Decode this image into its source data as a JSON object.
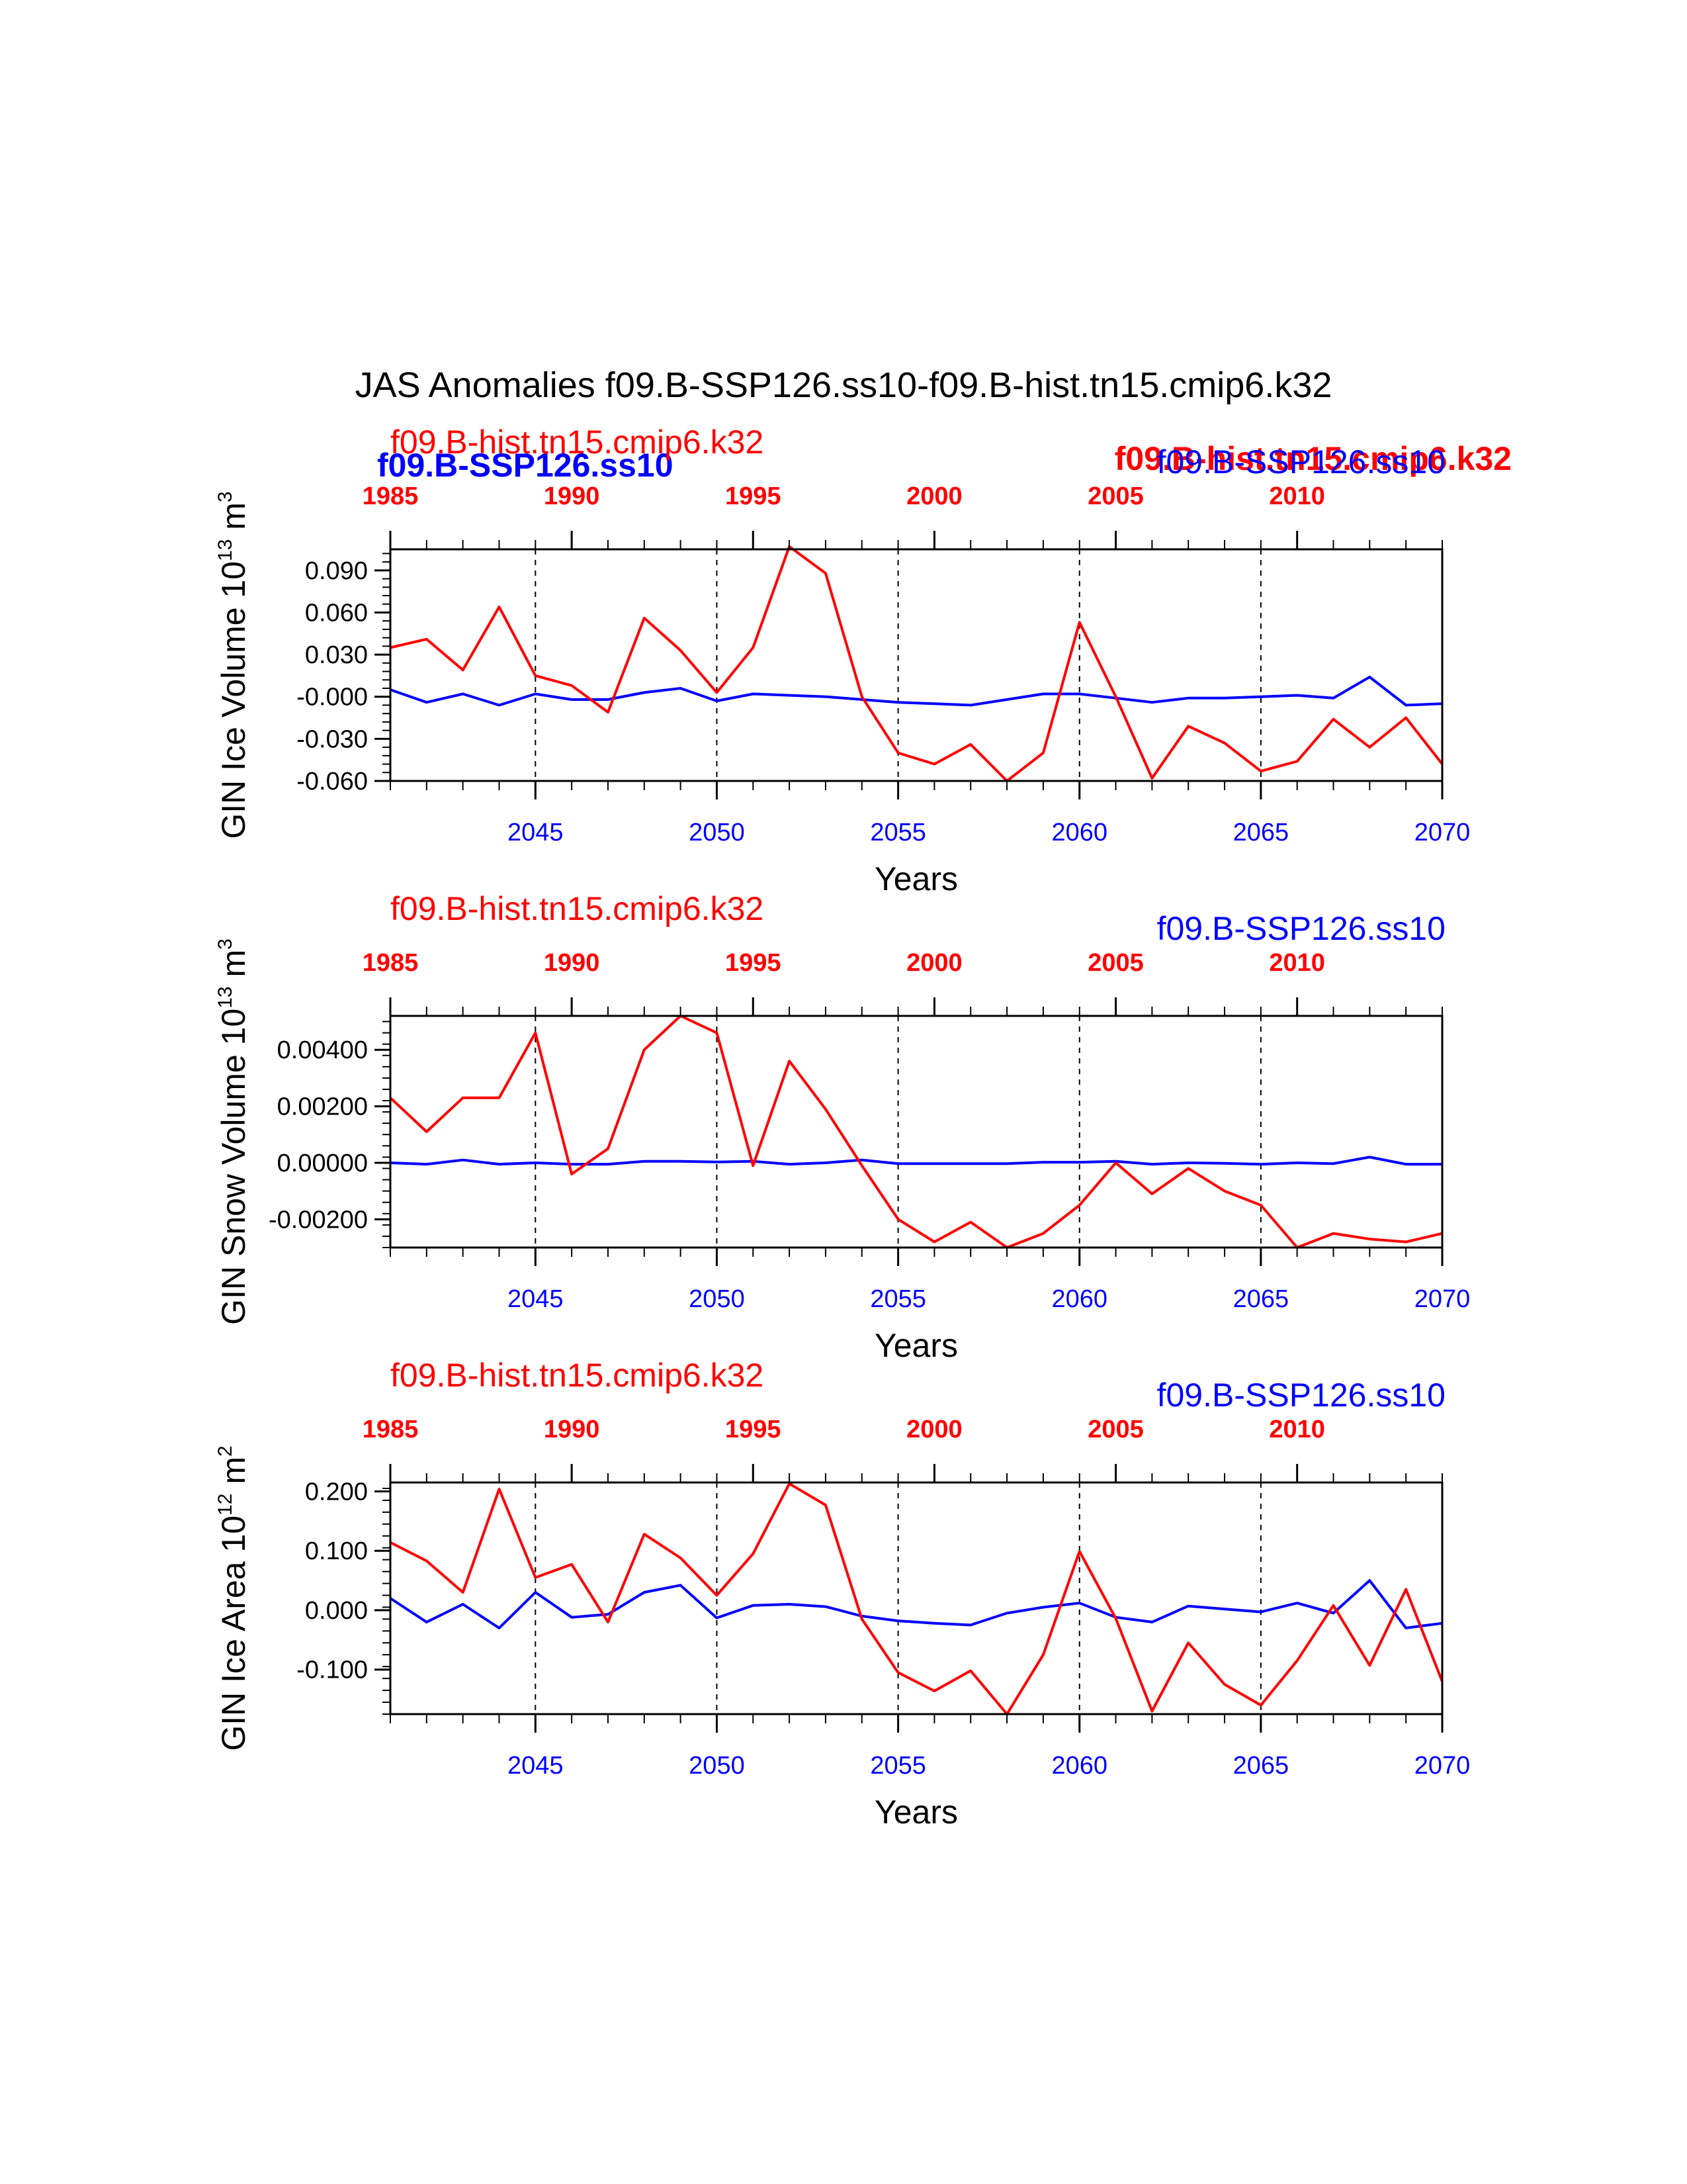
{
  "title": "JAS Anomalies f09.B-SSP126.ss10-f09.B-hist.tn15.cmip6.k32",
  "colors": {
    "hist": "#ff0000",
    "ssp": "#0000ff",
    "axis": "#000000"
  },
  "overlay_labels": {
    "ssp_bold_left": "f09.B-SSP126.ss10",
    "hist_bold_right": "f09.B-hist.tn15.cmip6.k32"
  },
  "chart_data": [
    {
      "type": "line",
      "ylabel_main": "GIN Ice Volume 10",
      "ylabel_exp": "13",
      "ylabel_unit": " m",
      "ylabel_unit_exp": "3",
      "xlabel": "Years",
      "legend_hist": "f09.B-hist.tn15.cmip6.k32",
      "legend_ssp": "f09.B-SSP126.ss10",
      "ylim": [
        -0.06,
        0.105
      ],
      "yticks": [
        -0.06,
        -0.03,
        0.0,
        0.03,
        0.06,
        0.09
      ],
      "ytick_labels": [
        "-0.060",
        "-0.030",
        "-0.000",
        "0.030",
        "0.060",
        "0.090"
      ],
      "yminor_step": 0.006,
      "x_ssp": [
        2041,
        2042,
        2043,
        2044,
        2045,
        2046,
        2047,
        2048,
        2049,
        2050,
        2051,
        2052,
        2053,
        2054,
        2055,
        2056,
        2057,
        2058,
        2059,
        2060,
        2061,
        2062,
        2063,
        2064,
        2065,
        2066,
        2067,
        2068,
        2069,
        2070
      ],
      "series": [
        {
          "name": "f09.B-SSP126.ss10",
          "color": "#0000ff",
          "axis": "bottom",
          "values": [
            0.005,
            -0.004,
            0.002,
            -0.006,
            0.002,
            -0.002,
            -0.002,
            0.003,
            0.006,
            -0.003,
            0.002,
            0.001,
            0.0,
            -0.002,
            -0.004,
            -0.005,
            -0.006,
            -0.002,
            0.002,
            0.002,
            -0.001,
            -0.004,
            -0.001,
            -0.001,
            0.0,
            0.001,
            -0.001,
            0.014,
            -0.006,
            -0.005
          ]
        },
        {
          "name": "f09.B-hist.tn15.cmip6.k32",
          "color": "#ff0000",
          "axis": "top",
          "values": [
            0.035,
            0.041,
            0.019,
            0.064,
            0.015,
            0.008,
            -0.011,
            0.056,
            0.033,
            0.003,
            0.035,
            0.107,
            0.088,
            0.0,
            -0.04,
            -0.048,
            -0.034,
            -0.06,
            -0.04,
            0.053,
            0.0,
            -0.058,
            -0.021,
            -0.033,
            -0.053,
            -0.046,
            -0.016,
            -0.036,
            -0.015,
            -0.048
          ]
        }
      ]
    },
    {
      "type": "line",
      "ylabel_main": "GIN Snow Volume 10",
      "ylabel_exp": "13",
      "ylabel_unit": " m",
      "ylabel_unit_exp": "3",
      "xlabel": "Years",
      "legend_hist": "f09.B-hist.tn15.cmip6.k32",
      "legend_ssp": "f09.B-SSP126.ss10",
      "ylim": [
        -0.003,
        0.0052
      ],
      "yticks": [
        -0.002,
        0.0,
        0.002,
        0.004
      ],
      "ytick_labels": [
        "-0.00200",
        "0.00000",
        "0.00200",
        "0.00400"
      ],
      "yminor_step": 0.0004,
      "x_ssp": [
        2041,
        2042,
        2043,
        2044,
        2045,
        2046,
        2047,
        2048,
        2049,
        2050,
        2051,
        2052,
        2053,
        2054,
        2055,
        2056,
        2057,
        2058,
        2059,
        2060,
        2061,
        2062,
        2063,
        2064,
        2065,
        2066,
        2067,
        2068,
        2069,
        2070
      ],
      "series": [
        {
          "name": "f09.B-SSP126.ss10",
          "color": "#0000ff",
          "axis": "bottom",
          "values": [
            0.0,
            -5e-05,
            0.0001,
            -5e-05,
            0.0,
            -5e-05,
            -5e-05,
            5e-05,
            5e-05,
            3e-05,
            5e-05,
            -5e-05,
            0.0,
            0.0001,
            -3e-05,
            -3e-05,
            -3e-05,
            -3e-05,
            2e-05,
            2e-05,
            5e-05,
            -5e-05,
            0.0,
            -2e-05,
            -5e-05,
            0.0,
            -3e-05,
            0.0002,
            -5e-05,
            -5e-05
          ]
        },
        {
          "name": "f09.B-hist.tn15.cmip6.k32",
          "color": "#ff0000",
          "axis": "top",
          "values": [
            0.0023,
            0.0011,
            0.0023,
            0.0023,
            0.0046,
            -0.0004,
            0.0005,
            0.004,
            0.0052,
            0.0046,
            -0.0001,
            0.0036,
            0.0019,
            -0.0001,
            -0.002,
            -0.0028,
            -0.0021,
            -0.003,
            -0.0025,
            -0.0015,
            0.0,
            -0.0011,
            -0.0002,
            -0.001,
            -0.0015,
            -0.003,
            -0.0025,
            -0.0027,
            -0.0028,
            -0.0025
          ]
        }
      ]
    },
    {
      "type": "line",
      "ylabel_main": "GIN Ice Area 10",
      "ylabel_exp": "12",
      "ylabel_unit": " m",
      "ylabel_unit_exp": "2",
      "xlabel": "Years",
      "legend_hist": "f09.B-hist.tn15.cmip6.k32",
      "legend_ssp": "f09.B-SSP126.ss10",
      "ylim": [
        -0.175,
        0.215
      ],
      "yticks": [
        -0.1,
        0.0,
        0.1,
        0.2
      ],
      "ytick_labels": [
        "-0.100",
        "0.000",
        "0.100",
        "0.200"
      ],
      "yminor_step": 0.02,
      "x_ssp": [
        2041,
        2042,
        2043,
        2044,
        2045,
        2046,
        2047,
        2048,
        2049,
        2050,
        2051,
        2052,
        2053,
        2054,
        2055,
        2056,
        2057,
        2058,
        2059,
        2060,
        2061,
        2062,
        2063,
        2064,
        2065,
        2066,
        2067,
        2068,
        2069,
        2070
      ],
      "series": [
        {
          "name": "f09.B-SSP126.ss10",
          "color": "#0000ff",
          "axis": "bottom",
          "values": [
            0.02,
            -0.02,
            0.01,
            -0.03,
            0.03,
            -0.012,
            -0.007,
            0.03,
            0.042,
            -0.013,
            0.008,
            0.01,
            0.006,
            -0.01,
            -0.018,
            -0.022,
            -0.025,
            -0.005,
            0.005,
            0.012,
            -0.012,
            -0.02,
            0.007,
            0.002,
            -0.003,
            0.012,
            -0.005,
            0.05,
            -0.03,
            -0.022
          ]
        },
        {
          "name": "f09.B-hist.tn15.cmip6.k32",
          "color": "#ff0000",
          "axis": "top",
          "values": [
            0.114,
            0.083,
            0.03,
            0.204,
            0.055,
            0.077,
            -0.02,
            0.128,
            0.088,
            0.025,
            0.095,
            0.213,
            0.177,
            -0.015,
            -0.105,
            -0.136,
            -0.102,
            -0.175,
            -0.075,
            0.099,
            -0.014,
            -0.17,
            -0.055,
            -0.125,
            -0.16,
            -0.085,
            0.008,
            -0.093,
            0.035,
            -0.12
          ]
        }
      ]
    }
  ],
  "x_bottom": {
    "min": 2041,
    "max": 2070,
    "ticks": [
      2045,
      2050,
      2055,
      2060,
      2065,
      2070
    ],
    "labels": [
      "2045",
      "2050",
      "2055",
      "2060",
      "2065",
      "2070"
    ]
  },
  "x_top": {
    "offset_years": -56,
    "ticks": [
      1985,
      1990,
      1995,
      2000,
      2005,
      2010
    ],
    "labels": [
      "1985",
      "1990",
      "1995",
      "2000",
      "2005",
      "2010"
    ]
  }
}
